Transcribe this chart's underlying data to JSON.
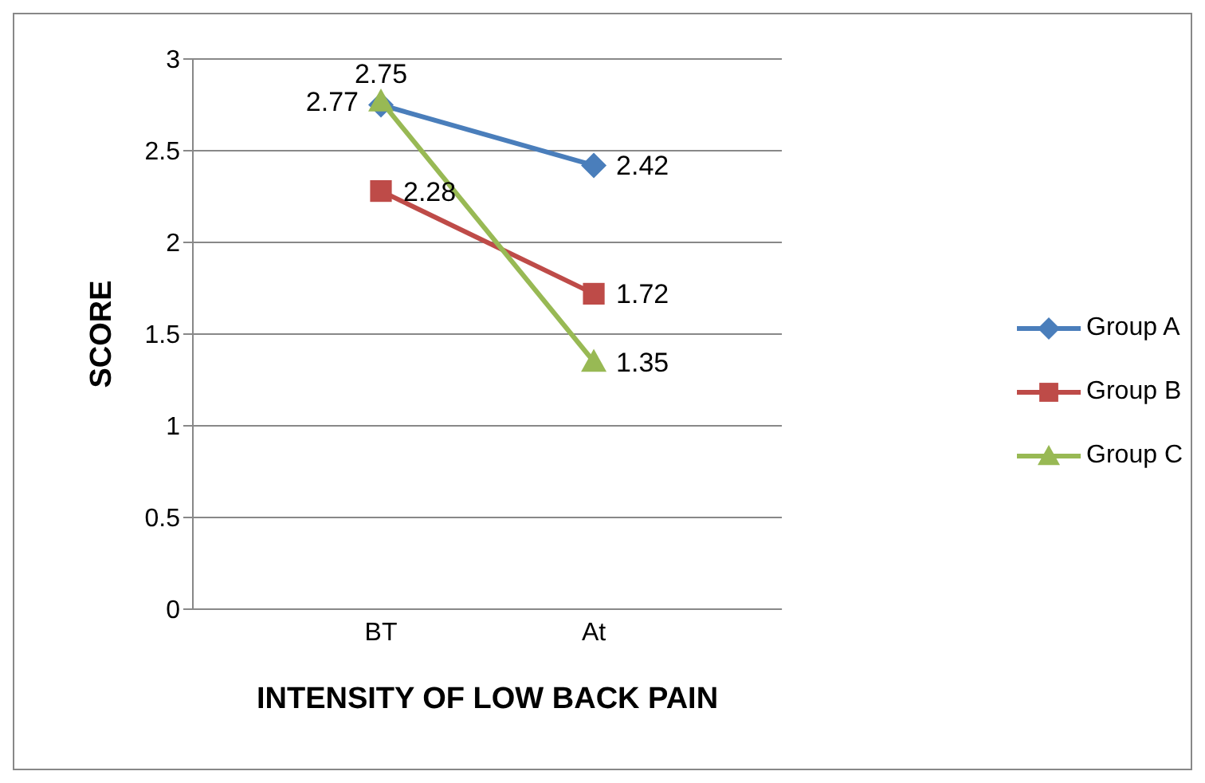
{
  "chart_data": {
    "type": "line",
    "xlabel": "INTENSITY OF LOW BACK PAIN",
    "ylabel": "SCORE",
    "categories": [
      "BT",
      "At"
    ],
    "series": [
      {
        "name": "Group A",
        "color": "#4a7ebb",
        "marker": "diamond",
        "values": [
          2.75,
          2.42
        ]
      },
      {
        "name": "Group B",
        "color": "#be4b48",
        "marker": "square",
        "values": [
          2.28,
          1.72
        ]
      },
      {
        "name": "Group C",
        "color": "#98b954",
        "marker": "triangle",
        "values": [
          2.77,
          1.35
        ]
      }
    ],
    "ylim": [
      0,
      3
    ],
    "yticks": [
      0,
      0.5,
      1,
      1.5,
      2,
      2.5,
      3
    ],
    "grid": "y",
    "legend": "right",
    "data_labels": true
  }
}
